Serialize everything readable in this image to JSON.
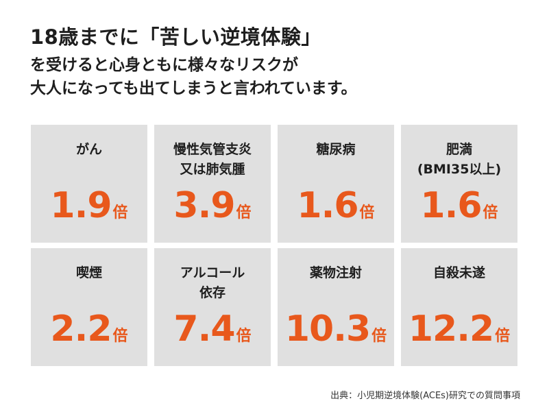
{
  "header": {
    "title": "18歳までに「苦しい逆境体験」",
    "subtitle_lines": [
      "を受けると心身ともに様々なリスクが",
      "大人になっても出てしまうと言われています。"
    ]
  },
  "unit": "倍",
  "colors": {
    "accent": "#e8581c",
    "card_background": "#e0e0e0",
    "text": "#1e1e1e"
  },
  "cards": [
    {
      "label_lines": [
        "がん"
      ],
      "value": "1.9"
    },
    {
      "label_lines": [
        "慢性気管支炎",
        "又は肺気腫"
      ],
      "value": "3.9"
    },
    {
      "label_lines": [
        "糖尿病"
      ],
      "value": "1.6"
    },
    {
      "label_lines": [
        "肥満",
        "(BMI35以上)"
      ],
      "value": "1.6"
    },
    {
      "label_lines": [
        "喫煙"
      ],
      "value": "2.2"
    },
    {
      "label_lines": [
        "アルコール",
        "依存"
      ],
      "value": "7.4"
    },
    {
      "label_lines": [
        "薬物注射"
      ],
      "value": "10.3"
    },
    {
      "label_lines": [
        "自殺未遂"
      ],
      "value": "12.2"
    }
  ],
  "source": "出典：小児期逆境体験(ACEs)研究での質問事項"
}
